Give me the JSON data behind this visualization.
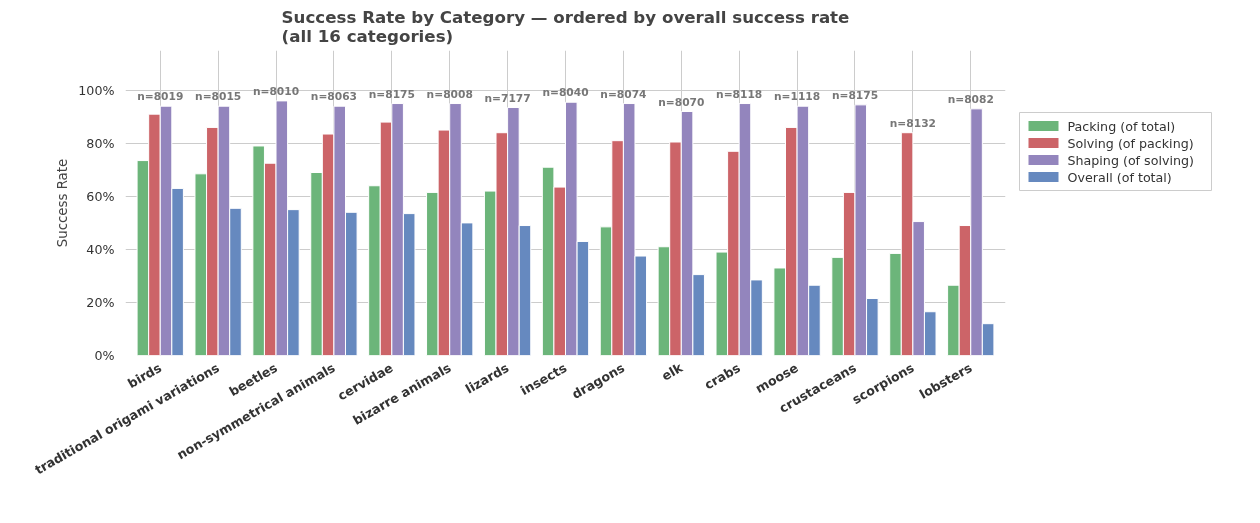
{
  "chart_data": {
    "type": "bar",
    "title": "Success Rate by Category — ordered by overall success rate\n(all 16 categories)",
    "ylabel": "Success Rate",
    "categories": [
      "birds",
      "traditional origami variations",
      "beetles",
      "non-symmetrical animals",
      "cervidae",
      "bizarre animals",
      "lizards",
      "insects",
      "dragons",
      "elk",
      "crabs",
      "moose",
      "crustaceans",
      "scorpions",
      "lobsters"
    ],
    "series": [
      {
        "name": "Packing (of total)",
        "color": "#6cb57a",
        "values": [
          73.5,
          68.5,
          79,
          69,
          64,
          61.5,
          62,
          71,
          48.5,
          41,
          39,
          33,
          37,
          38.5,
          26.5
        ]
      },
      {
        "name": "Solving (of packing)",
        "color": "#cc6468",
        "values": [
          91,
          86,
          72.5,
          83.5,
          88,
          85,
          84,
          63.5,
          81,
          80.5,
          77,
          86,
          61.5,
          84,
          49
        ]
      },
      {
        "name": "Shaping (of solving)",
        "color": "#9385bd",
        "values": [
          94,
          94,
          96,
          94,
          95,
          95,
          93.5,
          95.5,
          95,
          92,
          95,
          94,
          94.5,
          50.5,
          93
        ]
      },
      {
        "name": "Overall (of total)",
        "color": "#6689bf",
        "values": [
          63,
          55.5,
          55,
          54,
          53.5,
          50,
          49,
          43,
          37.5,
          30.5,
          28.5,
          26.5,
          21.5,
          16.5,
          12
        ]
      }
    ],
    "annotations": [
      {
        "text": "n=8019",
        "x": "birds",
        "y": 94
      },
      {
        "text": "n=8015",
        "x": "traditional origami variations",
        "y": 94
      },
      {
        "text": "n=8010",
        "x": "beetles",
        "y": 96
      },
      {
        "text": "n=8063",
        "x": "non-symmetrical animals",
        "y": 94
      },
      {
        "text": "n=8175",
        "x": "cervidae",
        "y": 95
      },
      {
        "text": "n=8008",
        "x": "bizarre animals",
        "y": 95
      },
      {
        "text": "n=7177",
        "x": "lizards",
        "y": 93.5
      },
      {
        "text": "n=8040",
        "x": "insects",
        "y": 95.5
      },
      {
        "text": "n=8074",
        "x": "dragons",
        "y": 95
      },
      {
        "text": "n=8070",
        "x": "elk",
        "y": 92
      },
      {
        "text": "n=8118",
        "x": "crabs",
        "y": 95
      },
      {
        "text": "n=1118",
        "x": "moose",
        "y": 94
      },
      {
        "text": "n=8175",
        "x": "crustaceans",
        "y": 94.5
      },
      {
        "text": "n=8132",
        "x": "scorpions",
        "y": 84
      },
      {
        "text": "n=8082",
        "x": "lobsters",
        "y": 93
      }
    ],
    "ylim": [
      0,
      115
    ],
    "yticks": [
      {
        "value": 0,
        "label": "0%"
      },
      {
        "value": 20,
        "label": "20%"
      },
      {
        "value": 40,
        "label": "40%"
      },
      {
        "value": 60,
        "label": "60%"
      },
      {
        "value": 80,
        "label": "80%"
      },
      {
        "value": 100,
        "label": "100%"
      }
    ],
    "grid": true,
    "legend": "top right"
  }
}
